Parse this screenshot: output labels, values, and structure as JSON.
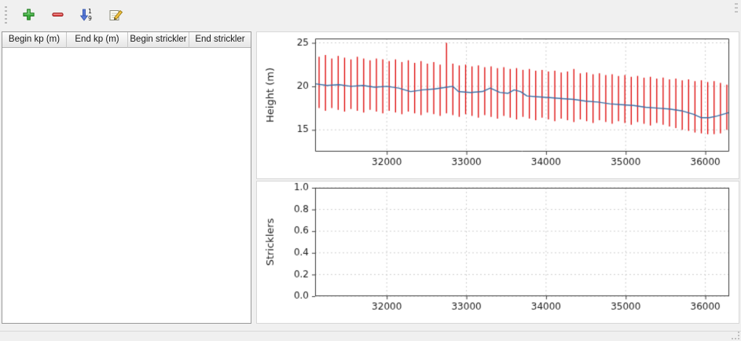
{
  "toolbar": {
    "buttons": [
      {
        "name": "add-row-button",
        "icon": "plus-icon",
        "color": "#3fae3f"
      },
      {
        "name": "remove-row-button",
        "icon": "minus-icon",
        "color": "#e04848"
      },
      {
        "name": "sort-button",
        "icon": "sort-numeric-descending-icon",
        "color": "#4a6fd4"
      },
      {
        "name": "edit-button",
        "icon": "edit-pen-icon",
        "color": "#f0c040"
      }
    ],
    "sort_numbers": [
      "1",
      "9"
    ]
  },
  "table": {
    "headers": [
      "Begin kp (m)",
      "End kp (m)",
      "Begin strickler",
      "End strickler"
    ],
    "rows": []
  },
  "chart_data": [
    {
      "type": "line",
      "title": "",
      "xlabel": "",
      "ylabel": "Height (m)",
      "xlim": [
        31100,
        36300
      ],
      "ylim": [
        12.5,
        25.5
      ],
      "xticks": [
        32000,
        33000,
        34000,
        35000,
        36000
      ],
      "xticklabels": [
        "32000",
        "33000",
        "34000",
        "35000",
        "36000"
      ],
      "yticks": [
        15,
        20,
        25
      ],
      "yticklabels": [
        "15",
        "20",
        "25"
      ],
      "grid": true,
      "bar_color": "#dd0000",
      "bars": [
        [
          31150,
          17.5,
          23.4
        ],
        [
          31230,
          17.2,
          23.6
        ],
        [
          31310,
          17.5,
          23.2
        ],
        [
          31390,
          17.3,
          23.5
        ],
        [
          31470,
          17.1,
          23.3
        ],
        [
          31550,
          17.4,
          23.1
        ],
        [
          31630,
          17.2,
          23.4
        ],
        [
          31710,
          17.0,
          23.2
        ],
        [
          31790,
          17.3,
          23.0
        ],
        [
          31870,
          17.1,
          23.2
        ],
        [
          31950,
          16.9,
          23.1
        ],
        [
          32030,
          17.2,
          22.9
        ],
        [
          32110,
          17.0,
          23.1
        ],
        [
          32190,
          16.8,
          22.8
        ],
        [
          32270,
          17.1,
          23.0
        ],
        [
          32350,
          16.9,
          22.7
        ],
        [
          32430,
          16.7,
          22.9
        ],
        [
          32510,
          17.0,
          22.6
        ],
        [
          32590,
          16.8,
          22.8
        ],
        [
          32670,
          16.6,
          22.5
        ],
        [
          32750,
          16.9,
          25.0
        ],
        [
          32830,
          16.7,
          22.6
        ],
        [
          32910,
          16.5,
          22.4
        ],
        [
          32990,
          16.8,
          22.5
        ],
        [
          33070,
          16.6,
          22.3
        ],
        [
          33150,
          16.4,
          22.4
        ],
        [
          33230,
          16.7,
          22.2
        ],
        [
          33310,
          16.5,
          22.3
        ],
        [
          33390,
          16.3,
          22.1
        ],
        [
          33470,
          16.6,
          22.2
        ],
        [
          33550,
          16.4,
          22.0
        ],
        [
          33630,
          16.2,
          22.1
        ],
        [
          33710,
          16.5,
          21.9
        ],
        [
          33790,
          16.3,
          22.0
        ],
        [
          33870,
          16.1,
          21.8
        ],
        [
          33950,
          16.4,
          21.9
        ],
        [
          34030,
          16.2,
          21.7
        ],
        [
          34110,
          16.0,
          21.8
        ],
        [
          34190,
          16.3,
          21.6
        ],
        [
          34270,
          16.1,
          21.7
        ],
        [
          34350,
          15.9,
          22.0
        ],
        [
          34430,
          16.2,
          21.5
        ],
        [
          34510,
          16.0,
          21.6
        ],
        [
          34590,
          15.8,
          21.4
        ],
        [
          34670,
          16.1,
          21.5
        ],
        [
          34750,
          15.9,
          21.3
        ],
        [
          34830,
          15.7,
          21.4
        ],
        [
          34910,
          16.0,
          21.2
        ],
        [
          34990,
          15.8,
          21.3
        ],
        [
          35070,
          15.6,
          21.1
        ],
        [
          35150,
          15.9,
          21.2
        ],
        [
          35230,
          15.7,
          21.0
        ],
        [
          35310,
          15.5,
          21.1
        ],
        [
          35390,
          15.8,
          20.9
        ],
        [
          35470,
          15.6,
          21.0
        ],
        [
          35550,
          15.4,
          20.8
        ],
        [
          35630,
          15.2,
          20.9
        ],
        [
          35710,
          15.0,
          20.7
        ],
        [
          35790,
          14.9,
          20.8
        ],
        [
          35870,
          14.7,
          20.6
        ],
        [
          35950,
          14.6,
          20.7
        ],
        [
          36030,
          14.5,
          20.5
        ],
        [
          36110,
          14.5,
          20.6
        ],
        [
          36190,
          14.6,
          20.4
        ],
        [
          36270,
          15.0,
          20.2
        ]
      ],
      "line": {
        "color": "#3b6ea5",
        "points": [
          [
            31100,
            20.3
          ],
          [
            31250,
            20.1
          ],
          [
            31400,
            20.2
          ],
          [
            31550,
            20.0
          ],
          [
            31700,
            20.1
          ],
          [
            31850,
            19.9
          ],
          [
            32000,
            20.0
          ],
          [
            32150,
            19.8
          ],
          [
            32300,
            19.4
          ],
          [
            32450,
            19.6
          ],
          [
            32600,
            19.7
          ],
          [
            32750,
            19.9
          ],
          [
            32830,
            20.0
          ],
          [
            32900,
            19.4
          ],
          [
            33050,
            19.3
          ],
          [
            33200,
            19.4
          ],
          [
            33300,
            19.8
          ],
          [
            33420,
            19.3
          ],
          [
            33520,
            19.2
          ],
          [
            33600,
            19.6
          ],
          [
            33680,
            19.4
          ],
          [
            33760,
            18.9
          ],
          [
            33900,
            18.8
          ],
          [
            34050,
            18.7
          ],
          [
            34200,
            18.6
          ],
          [
            34350,
            18.5
          ],
          [
            34500,
            18.3
          ],
          [
            34650,
            18.2
          ],
          [
            34800,
            18.0
          ],
          [
            34950,
            17.9
          ],
          [
            35100,
            17.8
          ],
          [
            35250,
            17.6
          ],
          [
            35400,
            17.5
          ],
          [
            35550,
            17.4
          ],
          [
            35700,
            17.2
          ],
          [
            35850,
            16.8
          ],
          [
            35950,
            16.4
          ],
          [
            36050,
            16.4
          ],
          [
            36150,
            16.6
          ],
          [
            36300,
            17.0
          ]
        ]
      }
    },
    {
      "type": "line",
      "title": "",
      "xlabel": "",
      "ylabel": "Stricklers",
      "xlim": [
        31100,
        36300
      ],
      "ylim": [
        0,
        1
      ],
      "xticks": [
        32000,
        33000,
        34000,
        35000,
        36000
      ],
      "xticklabels": [
        "32000",
        "33000",
        "34000",
        "35000",
        "36000"
      ],
      "yticks": [
        0,
        0.2,
        0.4,
        0.6,
        0.8,
        1
      ],
      "yticklabels": [
        "0.0",
        "0.2",
        "0.4",
        "0.6",
        "0.8",
        "1.0"
      ],
      "grid": true
    }
  ]
}
